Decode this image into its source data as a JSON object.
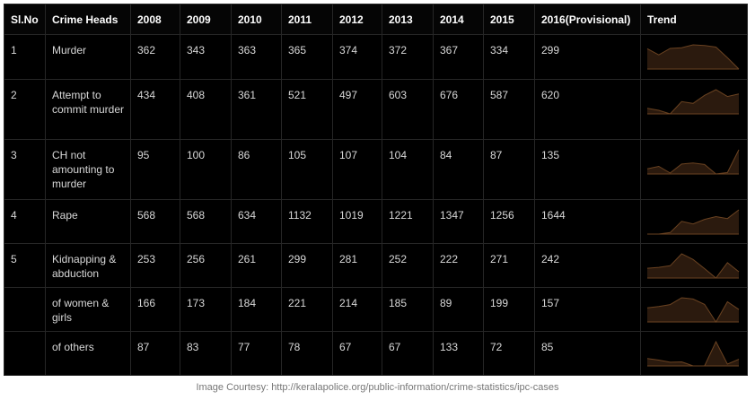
{
  "table": {
    "header": [
      "Sl.No",
      "Crime Heads",
      "2008",
      "2009",
      "2010",
      "2011",
      "2012",
      "2013",
      "2014",
      "2015",
      "2016(Provisional)",
      "Trend"
    ],
    "rows": [
      {
        "sl": 1,
        "head": "Murder",
        "values": [
          362,
          343,
          363,
          365,
          374,
          372,
          367,
          334,
          299
        ]
      },
      {
        "sl": 2,
        "head": "Attempt to commit murder",
        "values": [
          434,
          408,
          361,
          521,
          497,
          603,
          676,
          587,
          620
        ]
      },
      {
        "sl": 3,
        "head": "CH not amounting to murder",
        "values": [
          95,
          100,
          86,
          105,
          107,
          104,
          84,
          87,
          135
        ]
      },
      {
        "sl": 4,
        "head": "Rape",
        "values": [
          568,
          568,
          634,
          1132,
          1019,
          1221,
          1347,
          1256,
          1644
        ]
      },
      {
        "sl": 5,
        "head": "Kidnapping & abduction",
        "values": [
          253,
          256,
          261,
          299,
          281,
          252,
          222,
          271,
          242
        ]
      },
      {
        "head": "of women & girls",
        "values": [
          166,
          173,
          184,
          221,
          214,
          185,
          89,
          199,
          157
        ]
      },
      {
        "head": "of others",
        "values": [
          87,
          83,
          77,
          78,
          67,
          67,
          133,
          72,
          85
        ]
      }
    ]
  },
  "caption": "Image Courtesy: http://keralapolice.org/public-information/crime-statistics/ipc-cases"
}
